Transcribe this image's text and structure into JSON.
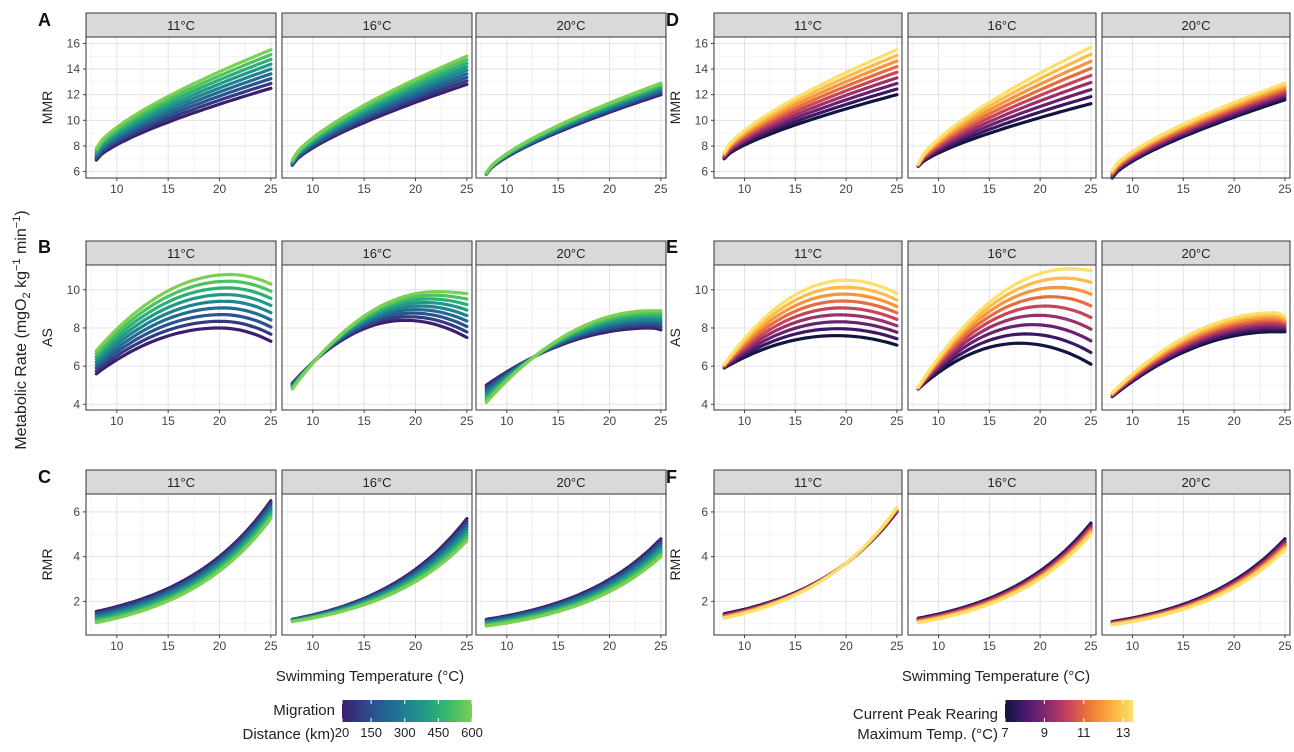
{
  "figure": {
    "y_axis_title_main": "Metabolic Rate (mgO",
    "y_axis_title_sub": "2",
    "y_axis_title_rest": " kg",
    "y_axis_title_sup1": "−1",
    "y_axis_title_min": " min",
    "y_axis_title_sup2": "−1",
    "y_axis_title_close": ")",
    "x_axis_title": "Swimming Temperature (°C)"
  },
  "legends": {
    "migration": {
      "title_line1": "Migration",
      "title_line2": "Distance (km)",
      "tick_labels": [
        "20",
        "150",
        "300",
        "450",
        "600"
      ],
      "tick_values": [
        20,
        150,
        300,
        450,
        600
      ],
      "range": [
        20,
        600
      ],
      "palette": [
        "#3b1f6e",
        "#2d4a8a",
        "#1f7094",
        "#1f958b",
        "#33b76e",
        "#7ad151"
      ]
    },
    "rearing": {
      "title_line1": "Current Peak Rearing",
      "title_line2": "Maximum Temp. (°C)",
      "tick_labels": [
        "7",
        "9",
        "11",
        "13"
      ],
      "tick_values": [
        7,
        9,
        11,
        13
      ],
      "range": [
        7,
        13.5
      ],
      "palette": [
        "#10153f",
        "#4a1870",
        "#8a2a6e",
        "#c8445a",
        "#ee7a36",
        "#fbb042",
        "#fde06a"
      ]
    }
  },
  "chart_data": [
    {
      "panel": "A",
      "type": "line",
      "ylabel": "MMR",
      "palette": "migration",
      "ylim": [
        5.5,
        16.5
      ],
      "yticks": [
        6,
        8,
        10,
        12,
        14,
        16
      ],
      "xlim": [
        7,
        25.5
      ],
      "xticks": [
        10,
        15,
        20,
        25
      ],
      "facets": [
        {
          "title": "11°C",
          "start": [
            6.9,
            7.8
          ],
          "end": [
            12.5,
            15.5
          ],
          "shape": "concave"
        },
        {
          "title": "16°C",
          "start": [
            6.5,
            6.9
          ],
          "end": [
            12.8,
            15.0
          ],
          "shape": "concave"
        },
        {
          "title": "20°C",
          "start": [
            5.8,
            5.9
          ],
          "end": [
            12.0,
            12.9
          ],
          "shape": "concave"
        }
      ]
    },
    {
      "panel": "B",
      "type": "line",
      "ylabel": "AS",
      "palette": "migration",
      "ylim": [
        3.7,
        11.3
      ],
      "yticks": [
        4,
        6,
        8,
        10
      ],
      "xlim": [
        7,
        25.5
      ],
      "xticks": [
        10,
        15,
        20,
        25
      ],
      "facets": [
        {
          "title": "11°C",
          "start": [
            5.6,
            6.8
          ],
          "peak": [
            8.0,
            10.8
          ],
          "peak_x": [
            20,
            21
          ],
          "end": [
            7.3,
            10.3
          ],
          "shape": "hump"
        },
        {
          "title": "16°C",
          "start": [
            5.1,
            4.8
          ],
          "peak": [
            8.4,
            9.9
          ],
          "peak_x": [
            19,
            22
          ],
          "end": [
            7.5,
            9.8
          ],
          "shape": "hump"
        },
        {
          "title": "20°C",
          "start": [
            5.0,
            4.1
          ],
          "peak": [
            8.0,
            8.9
          ],
          "peak_x": [
            24,
            24
          ],
          "end": [
            7.9,
            8.9
          ],
          "shape": "hump"
        }
      ]
    },
    {
      "panel": "C",
      "type": "line",
      "ylabel": "RMR",
      "palette": "migration",
      "ylim": [
        0.5,
        6.8
      ],
      "yticks": [
        2,
        4,
        6
      ],
      "xlim": [
        7,
        25.5
      ],
      "xticks": [
        10,
        15,
        20,
        25
      ],
      "facets": [
        {
          "title": "11°C",
          "start": [
            1.55,
            1.05
          ],
          "end": [
            6.5,
            5.7
          ],
          "shape": "convex"
        },
        {
          "title": "16°C",
          "start": [
            1.2,
            1.1
          ],
          "end": [
            5.7,
            4.7
          ],
          "shape": "convex"
        },
        {
          "title": "20°C",
          "start": [
            1.2,
            0.9
          ],
          "end": [
            4.8,
            4.0
          ],
          "shape": "convex"
        }
      ]
    },
    {
      "panel": "D",
      "type": "line",
      "ylabel": "MMR",
      "palette": "rearing",
      "ylim": [
        5.5,
        16.5
      ],
      "yticks": [
        6,
        8,
        10,
        12,
        14,
        16
      ],
      "xlim": [
        7,
        25.5
      ],
      "xticks": [
        10,
        15,
        20,
        25
      ],
      "facets": [
        {
          "title": "11°C",
          "start": [
            7.0,
            7.5
          ],
          "end": [
            12.0,
            15.5
          ],
          "shape": "concave"
        },
        {
          "title": "16°C",
          "start": [
            6.4,
            6.6
          ],
          "end": [
            11.3,
            15.7
          ],
          "shape": "concave"
        },
        {
          "title": "20°C",
          "start": [
            5.5,
            6.1
          ],
          "end": [
            11.6,
            12.9
          ],
          "shape": "concave"
        }
      ]
    },
    {
      "panel": "E",
      "type": "line",
      "ylabel": "AS",
      "palette": "rearing",
      "ylim": [
        3.7,
        11.3
      ],
      "yticks": [
        4,
        6,
        8,
        10
      ],
      "xlim": [
        7,
        25.5
      ],
      "xticks": [
        10,
        15,
        20,
        25
      ],
      "facets": [
        {
          "title": "11°C",
          "start": [
            5.9,
            6.1
          ],
          "peak": [
            7.6,
            10.5
          ],
          "peak_x": [
            19,
            20
          ],
          "end": [
            7.1,
            9.8
          ],
          "shape": "hump"
        },
        {
          "title": "16°C",
          "start": [
            4.8,
            4.9
          ],
          "peak": [
            7.2,
            11.1
          ],
          "peak_x": [
            18,
            23
          ],
          "end": [
            6.1,
            11.0
          ],
          "shape": "hump"
        },
        {
          "title": "20°C",
          "start": [
            4.4,
            4.6
          ],
          "peak": [
            7.8,
            8.8
          ],
          "peak_x": [
            24,
            24
          ],
          "end": [
            7.8,
            8.6
          ],
          "shape": "hump"
        }
      ]
    },
    {
      "panel": "F",
      "type": "line",
      "ylabel": "RMR",
      "palette": "rearing",
      "ylim": [
        0.5,
        6.8
      ],
      "yticks": [
        2,
        4,
        6
      ],
      "xlim": [
        7,
        25.5
      ],
      "xticks": [
        10,
        15,
        20,
        25
      ],
      "facets": [
        {
          "title": "11°C",
          "start": [
            1.45,
            1.25
          ],
          "end": [
            6.0,
            6.2
          ],
          "shape": "convex"
        },
        {
          "title": "16°C",
          "start": [
            1.25,
            1.05
          ],
          "end": [
            5.5,
            5.0
          ],
          "shape": "convex"
        },
        {
          "title": "20°C",
          "start": [
            1.1,
            0.95
          ],
          "end": [
            4.8,
            4.3
          ],
          "shape": "convex"
        }
      ]
    }
  ]
}
